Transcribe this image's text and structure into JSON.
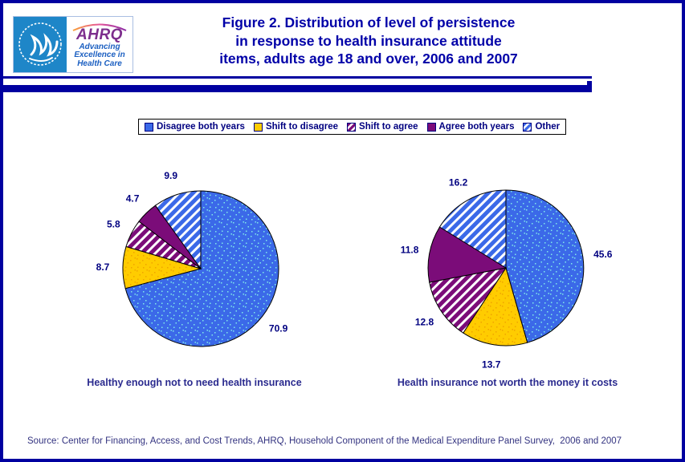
{
  "header": {
    "logo": {
      "wordmark": "AHRQ",
      "tagline": [
        "Advancing",
        "Excellence in",
        "Health Care"
      ]
    },
    "title_lines": [
      "Figure 2. Distribution of level of persistence",
      "in response to health insurance attitude",
      "items, adults age 18 and over, 2006 and 2007"
    ]
  },
  "legend": {
    "items": [
      {
        "label": "Disagree both years",
        "fill": "solid-blue"
      },
      {
        "label": "Shift to disagree",
        "fill": "solid-yellow"
      },
      {
        "label": "Shift to agree",
        "fill": "stripes-purple"
      },
      {
        "label": "Agree both years",
        "fill": "solid-purple"
      },
      {
        "label": "Other",
        "fill": "stripes-blue"
      }
    ]
  },
  "chart_data": [
    {
      "type": "pie",
      "title": "Healthy enough not to need health insurance",
      "categories": [
        "Disagree both years",
        "Shift to disagree",
        "Shift to agree",
        "Agree both years",
        "Other"
      ],
      "values": [
        70.9,
        8.7,
        5.8,
        4.7,
        9.9
      ],
      "labels": [
        "70.9",
        "8.7",
        "5.8",
        "4.7",
        "9.9"
      ],
      "fills": [
        "dots-blue",
        "dots-yellow",
        "stripes-purple",
        "solid-purple",
        "stripes-blue"
      ],
      "start_angle_deg": 0,
      "direction": "clockwise",
      "label_position": "outside"
    },
    {
      "type": "pie",
      "title": "Health insurance not worth the money it costs",
      "categories": [
        "Disagree both years",
        "Shift to disagree",
        "Shift to agree",
        "Agree both years",
        "Other"
      ],
      "values": [
        45.6,
        13.7,
        12.8,
        11.8,
        16.2
      ],
      "labels": [
        "45.6",
        "13.7",
        "12.8",
        "11.8",
        "16.2"
      ],
      "fills": [
        "dots-blue",
        "dots-yellow",
        "stripes-purple",
        "solid-purple",
        "stripes-blue"
      ],
      "start_angle_deg": 0,
      "direction": "clockwise",
      "label_position": "outside"
    }
  ],
  "colors": {
    "border_navy": "#0000A0",
    "title_navy": "#0000A8",
    "text_navy": "#000080",
    "pie_blue": "#3B69E8",
    "pie_yellow": "#FFCC00",
    "pie_purple": "#7B0C79",
    "dot_cyan": "#7FE9E9",
    "dot_orange": "#EFA400",
    "stripe_white": "#FFFFFF",
    "slice_outline": "#000000",
    "logo_blue": "#1E86C8",
    "logo_purple": "#7D2E8D",
    "tagline_blue": "#1B5FC1"
  },
  "source": "Source: Center for Financing, Access, and Cost Trends, AHRQ, Household Component of the Medical Expenditure Panel Survey,  2006 and 2007"
}
